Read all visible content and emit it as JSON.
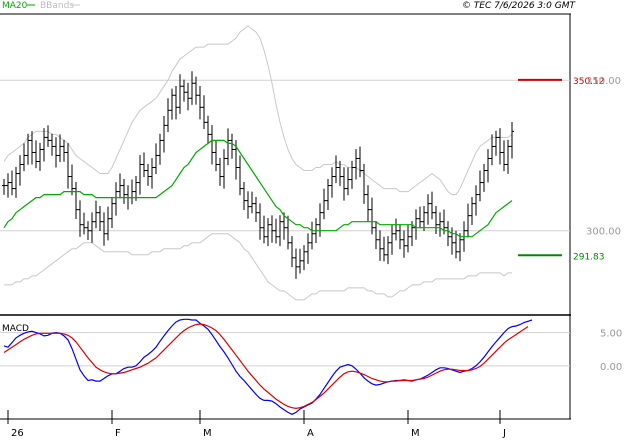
{
  "header": {
    "ma_label": "MA20",
    "bands_label": "BBands",
    "copyright": "© TEC 7/6/2026 3:0 GMT"
  },
  "macd_panel": {
    "label": "MACD"
  },
  "colors": {
    "price": "#000000",
    "ma20": "#00aa00",
    "bbands": "#c8c8c8",
    "macd": "#0000ff",
    "signal": "#dd0000",
    "resistance": "#cc0000",
    "support": "#008800",
    "axis_text": "#999999"
  },
  "chart_data": [
    {
      "type": "line",
      "subtype": "ohlc",
      "title": "",
      "grid": true,
      "ylim": [
        272,
        372
      ],
      "y_ticks": [
        300,
        350
      ],
      "x_ticks": [
        "26",
        "F",
        "M",
        "A",
        "M",
        "J"
      ],
      "levels": [
        {
          "name": "resistance",
          "value": 350.12,
          "label": "350.12"
        },
        {
          "name": "support",
          "value": 291.83,
          "label": "291.83"
        }
      ],
      "series": [
        {
          "kind": "price",
          "values": [
            315,
            316,
            314,
            319,
            322,
            325,
            330,
            326,
            323,
            327,
            331,
            330,
            328,
            325,
            328,
            326,
            318,
            314,
            307,
            302,
            301,
            300,
            303,
            306,
            303,
            299,
            304,
            309,
            313,
            315,
            312,
            311,
            313,
            316,
            322,
            320,
            318,
            321,
            325,
            330,
            335,
            340,
            345,
            341,
            348,
            346,
            344,
            349,
            345,
            341,
            336,
            332,
            326,
            322,
            318,
            324,
            330,
            327,
            321,
            314,
            310,
            308,
            309,
            306,
            301,
            298,
            302,
            300,
            298,
            303,
            301,
            296,
            291,
            288,
            290,
            293,
            296,
            299,
            302,
            306,
            310,
            315,
            318,
            321,
            318,
            314,
            317,
            321,
            324,
            320,
            312,
            307,
            301,
            297,
            294,
            292,
            296,
            299,
            300,
            297,
            295,
            298,
            301,
            304,
            303,
            306,
            309,
            306,
            302,
            303,
            301,
            298,
            296,
            293,
            297,
            300,
            305,
            309,
            312,
            316,
            320,
            324,
            328,
            331,
            326,
            322,
            328,
            333
          ]
        },
        {
          "kind": "ma20",
          "values": [
            301,
            303,
            304,
            306,
            307,
            308,
            309,
            310,
            311,
            311,
            312,
            312,
            312,
            312,
            312,
            313,
            313,
            313,
            313,
            313,
            312,
            312,
            312,
            311,
            311,
            311,
            311,
            311,
            311,
            311,
            311,
            311,
            311,
            311,
            311,
            311,
            311,
            311,
            311,
            312,
            313,
            314,
            315,
            317,
            319,
            321,
            322,
            324,
            326,
            327,
            328,
            329,
            330,
            330,
            330,
            330,
            329,
            329,
            328,
            326,
            324,
            322,
            320,
            318,
            316,
            314,
            312,
            310,
            308,
            307,
            305,
            304,
            303,
            302,
            302,
            301,
            301,
            300,
            300,
            300,
            300,
            300,
            300,
            300,
            301,
            302,
            302,
            303,
            303,
            303,
            303,
            303,
            303,
            303,
            302,
            302,
            302,
            302,
            302,
            302,
            302,
            302,
            302,
            301,
            301,
            301,
            301,
            301,
            301,
            301,
            300,
            300,
            299,
            299,
            298,
            298,
            298,
            298,
            299,
            300,
            301,
            302,
            304,
            306,
            307,
            308,
            309,
            310
          ]
        },
        {
          "kind": "bb_upper",
          "values": [
            323,
            325,
            326,
            327,
            328,
            329,
            331,
            332,
            333,
            333,
            333,
            333,
            332,
            332,
            331,
            330,
            329,
            327,
            325,
            324,
            323,
            322,
            321,
            320,
            319,
            319,
            319,
            321,
            324,
            327,
            330,
            333,
            336,
            338,
            340,
            341,
            342,
            343,
            344,
            346,
            348,
            350,
            353,
            355,
            357,
            358,
            359,
            360,
            361,
            361,
            361,
            362,
            362,
            362,
            362,
            362,
            362,
            363,
            364,
            366,
            367,
            368,
            367,
            366,
            364,
            360,
            355,
            349,
            342,
            336,
            331,
            327,
            324,
            322,
            321,
            320,
            320,
            320,
            321,
            321,
            322,
            322,
            322,
            323,
            322,
            322,
            321,
            321,
            321,
            320,
            319,
            318,
            317,
            316,
            315,
            314,
            314,
            314,
            314,
            313,
            313,
            313,
            314,
            315,
            316,
            317,
            318,
            319,
            318,
            317,
            315,
            313,
            312,
            312,
            314,
            317,
            320,
            323,
            326,
            328,
            329,
            330,
            331,
            331,
            331,
            331,
            331,
            332
          ]
        },
        {
          "kind": "bb_lower",
          "values": [
            282,
            282,
            282,
            283,
            283,
            284,
            284,
            285,
            285,
            286,
            287,
            288,
            289,
            290,
            291,
            292,
            293,
            294,
            294,
            295,
            296,
            296,
            296,
            295,
            294,
            293,
            293,
            293,
            293,
            293,
            293,
            293,
            292,
            292,
            292,
            292,
            292,
            293,
            293,
            293,
            294,
            294,
            294,
            294,
            294,
            295,
            295,
            296,
            296,
            296,
            297,
            298,
            299,
            299,
            299,
            299,
            299,
            298,
            297,
            296,
            294,
            293,
            291,
            289,
            287,
            285,
            283,
            282,
            281,
            280,
            280,
            279,
            278,
            277,
            277,
            277,
            278,
            279,
            279,
            280,
            280,
            280,
            280,
            280,
            280,
            280,
            281,
            281,
            281,
            281,
            281,
            280,
            280,
            279,
            279,
            279,
            278,
            278,
            279,
            280,
            280,
            281,
            282,
            282,
            282,
            283,
            283,
            283,
            284,
            284,
            284,
            284,
            284,
            284,
            284,
            284,
            285,
            285,
            285,
            286,
            286,
            286,
            286,
            286,
            286,
            285,
            286,
            286
          ]
        }
      ]
    },
    {
      "type": "line",
      "title": "MACD",
      "ylim": [
        -8,
        7.5
      ],
      "y_ticks": [
        0,
        5
      ],
      "series": [
        {
          "name": "MACD",
          "values": [
            3.0,
            2.8,
            3.5,
            4.2,
            4.6,
            4.9,
            5.1,
            5.2,
            5.0,
            4.8,
            4.5,
            4.6,
            4.9,
            5.0,
            4.9,
            4.5,
            3.9,
            2.6,
            1.0,
            -0.6,
            -1.5,
            -2.2,
            -2.1,
            -2.3,
            -2.3,
            -1.9,
            -1.5,
            -1.2,
            -1.2,
            -0.8,
            -0.4,
            -0.2,
            -0.2,
            0.0,
            0.6,
            1.3,
            1.7,
            2.2,
            2.8,
            3.7,
            4.5,
            5.3,
            6.0,
            6.6,
            6.9,
            7.0,
            7.0,
            6.9,
            6.9,
            6.4,
            6.0,
            5.5,
            4.7,
            3.8,
            2.9,
            2.1,
            1.2,
            0.2,
            -0.8,
            -1.6,
            -2.2,
            -2.9,
            -3.6,
            -4.3,
            -4.9,
            -5.2,
            -5.2,
            -5.3,
            -5.7,
            -6.2,
            -6.6,
            -7.0,
            -7.3,
            -7.0,
            -6.5,
            -6.2,
            -5.9,
            -5.6,
            -5.0,
            -4.3,
            -3.4,
            -2.5,
            -1.6,
            -0.8,
            -0.2,
            0.0,
            0.2,
            0.0,
            -0.5,
            -1.1,
            -1.8,
            -2.3,
            -2.7,
            -2.9,
            -2.8,
            -2.6,
            -2.4,
            -2.3,
            -2.2,
            -2.2,
            -2.1,
            -2.2,
            -2.3,
            -2.1,
            -2.0,
            -1.7,
            -1.4,
            -1.0,
            -0.6,
            -0.3,
            -0.3,
            -0.4,
            -0.6,
            -0.8,
            -1.0,
            -0.8,
            -0.7,
            -0.4,
            0.0,
            0.6,
            1.3,
            2.1,
            2.9,
            3.6,
            4.3,
            5.0,
            5.6,
            5.9,
            6.0,
            6.2,
            6.5,
            6.7,
            6.9
          ]
        },
        {
          "name": "Signal",
          "values": [
            2.0,
            2.4,
            2.8,
            3.2,
            3.6,
            4.0,
            4.3,
            4.6,
            4.8,
            4.9,
            4.9,
            4.9,
            4.9,
            4.9,
            4.9,
            4.8,
            4.6,
            4.2,
            3.6,
            2.8,
            2.0,
            1.2,
            0.5,
            -0.2,
            -0.6,
            -0.9,
            -1.1,
            -1.2,
            -1.2,
            -1.1,
            -1.0,
            -0.8,
            -0.6,
            -0.4,
            -0.2,
            0.1,
            0.4,
            0.8,
            1.2,
            1.8,
            2.4,
            3.0,
            3.6,
            4.2,
            4.8,
            5.3,
            5.7,
            6.0,
            6.2,
            6.3,
            6.2,
            6.0,
            5.7,
            5.3,
            4.7,
            4.0,
            3.2,
            2.4,
            1.6,
            0.8,
            0.0,
            -0.8,
            -1.5,
            -2.2,
            -2.9,
            -3.5,
            -4.0,
            -4.5,
            -5.0,
            -5.4,
            -5.8,
            -6.1,
            -6.3,
            -6.4,
            -6.3,
            -6.1,
            -5.8,
            -5.5,
            -5.1,
            -4.6,
            -4.1,
            -3.5,
            -2.9,
            -2.3,
            -1.7,
            -1.2,
            -0.9,
            -0.8,
            -0.9,
            -1.1,
            -1.3,
            -1.6,
            -1.9,
            -2.1,
            -2.3,
            -2.4,
            -2.4,
            -2.3,
            -2.3,
            -2.2,
            -2.2,
            -2.2,
            -2.2,
            -2.1,
            -2.0,
            -1.9,
            -1.7,
            -1.4,
            -1.1,
            -0.8,
            -0.6,
            -0.5,
            -0.5,
            -0.6,
            -0.7,
            -0.7,
            -0.7,
            -0.6,
            -0.4,
            -0.1,
            0.4,
            1.0,
            1.6,
            2.2,
            2.8,
            3.4,
            3.9,
            4.3,
            4.7,
            5.1,
            5.5,
            5.9
          ]
        }
      ]
    }
  ]
}
